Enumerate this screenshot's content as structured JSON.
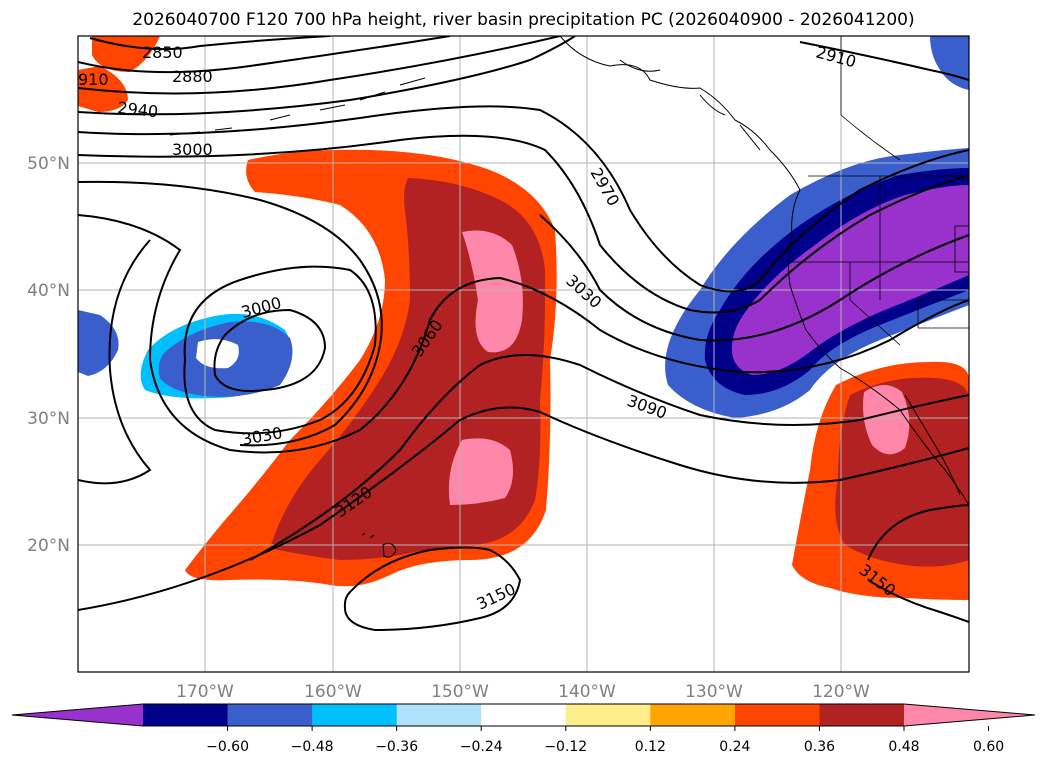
{
  "title": "2026040700 F120 700 hPa height, river basin precipitation PC (2026040900 - 2026041200)",
  "latitude_labels": [
    "50°N",
    "40°N",
    "30°N",
    "20°N"
  ],
  "longitude_labels": [
    "170°W",
    "160°W",
    "150°W",
    "140°W",
    "130°W",
    "120°W"
  ],
  "contour_labels": [
    "2850",
    "2880",
    "910",
    "2940",
    "3000",
    "2910",
    "2970",
    "3030",
    "3000",
    "3060",
    "3090",
    "3030",
    "3120",
    "3150",
    "3150"
  ],
  "colorbar": {
    "tick_labels": [
      "−0.60",
      "−0.48",
      "−0.36",
      "−0.24",
      "−0.12",
      "0.12",
      "0.24",
      "0.36",
      "0.48",
      "0.60"
    ],
    "colors": [
      "#9932cc",
      "#00008b",
      "#3a5fcd",
      "#00bfff",
      "#b0e0fa",
      "#ffffff",
      "#ffec8b",
      "#ffa500",
      "#ff4500",
      "#b22222",
      "#ff88aa"
    ]
  },
  "colors": {
    "purple": "#9932cc",
    "navy": "#00008b",
    "royal_blue": "#3a5fcd",
    "sky_blue": "#00bfff",
    "pale_blue": "#b0e0fa",
    "pale_yellow": "#ffec8b",
    "orange": "#ffa500",
    "orange_red": "#ff4500",
    "dark_red": "#b22222",
    "pink": "#ff88aa"
  }
}
